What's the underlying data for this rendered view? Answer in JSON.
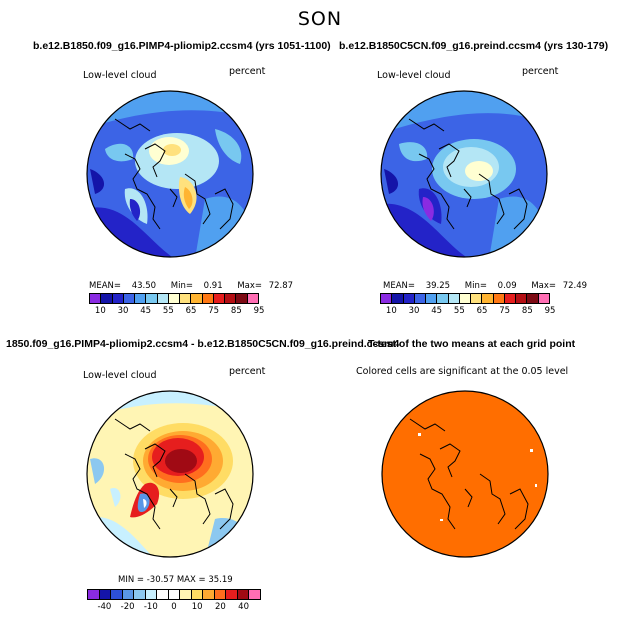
{
  "season": "SON",
  "panels": {
    "p1": {
      "title": "b.e12.B1850.f09_g16.PIMP4-pliomip2.ccsm4 (yrs 1051-1100)",
      "var_label": "Low-level cloud",
      "unit_label": "percent",
      "mean_label": "MEAN=",
      "mean": "43.50",
      "min_label": "Min=",
      "min": "0.91",
      "max_label": "Max=",
      "max": "72.87"
    },
    "p2": {
      "title": "b.e12.B1850C5CN.f09_g16.preind.ccsm4 (yrs 130-179)",
      "var_label": "Low-level cloud",
      "unit_label": "percent",
      "mean_label": "MEAN=",
      "mean": "39.25",
      "min_label": "Min=",
      "min": "0.09",
      "max_label": "Max=",
      "max": "72.49"
    },
    "p3": {
      "title": "1850.f09_g16.PIMP4-pliomip2.ccsm4 - b.e12.B1850C5CN.f09_g16.preind.ccsm4",
      "var_label": "Low-level cloud",
      "unit_label": "percent",
      "minmax": "MIN = -30.57  MAX =  35.19"
    },
    "p4": {
      "title": "T-test of the two means at each grid point",
      "note": "Colored cells are significant at the 0.05 level"
    }
  },
  "colorbar_abs": {
    "colors": [
      "#8a2be2",
      "#1414a8",
      "#2323c8",
      "#3c64e6",
      "#50a0f0",
      "#78c8f0",
      "#b4e6f5",
      "#ffffd2",
      "#ffe17d",
      "#ffb432",
      "#ff7814",
      "#e61e1e",
      "#b40f14",
      "#7d0a14",
      "#ff6eb4"
    ],
    "ticks": [
      "10",
      "30",
      "45",
      "55",
      "65",
      "75",
      "85",
      "95"
    ]
  },
  "colorbar_diff": {
    "colors": [
      "#8a2be2",
      "#1414a8",
      "#2d50d7",
      "#5a96e6",
      "#8cc8f0",
      "#c8f0ff",
      "#ffffff",
      "#ffffff",
      "#fff5b4",
      "#ffdc64",
      "#ffaa32",
      "#ff6e1e",
      "#e61e1e",
      "#a00a14",
      "#ff6eb4"
    ],
    "ticks": [
      "-40",
      "-20",
      "-10",
      "0",
      "10",
      "20",
      "40"
    ]
  },
  "colors": {
    "ocean_blue": "#3c64e6",
    "ttest_fill": "#ff6e00"
  }
}
